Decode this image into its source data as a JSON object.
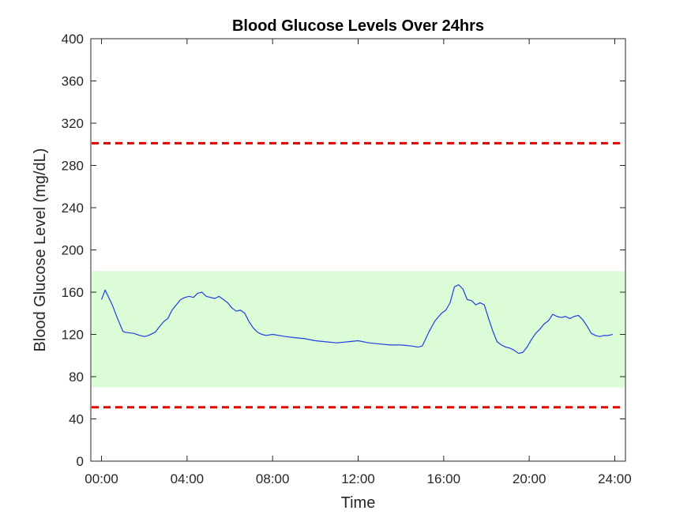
{
  "chart_data": {
    "type": "line",
    "title": "Blood Glucose Levels Over 24hrs",
    "xlabel": "Time",
    "ylabel": "Blood Glucose Level (mg/dL)",
    "xlim": [
      -0.5,
      24.5
    ],
    "ylim": [
      0,
      400
    ],
    "x_ticks": [
      0,
      4,
      8,
      12,
      16,
      20,
      24
    ],
    "x_tick_labels": [
      "00:00",
      "04:00",
      "08:00",
      "12:00",
      "16:00",
      "20:00",
      "24:00"
    ],
    "y_ticks": [
      0,
      40,
      80,
      120,
      160,
      200,
      240,
      280,
      320,
      360,
      400
    ],
    "grid": false,
    "target_range": {
      "low": 70,
      "high": 180,
      "color": "#dcfcd8"
    },
    "threshold_lines": [
      {
        "value": 301,
        "color": "#e00000",
        "style": "dashed"
      },
      {
        "value": 51,
        "color": "#e00000",
        "style": "dashed"
      }
    ],
    "series": [
      {
        "color": "#1f3fe0",
        "x": [
          0,
          0.17,
          0.5,
          0.75,
          1.0,
          1.1,
          1.5,
          1.8,
          2.0,
          2.2,
          2.5,
          2.7,
          2.9,
          3.1,
          3.3,
          3.5,
          3.7,
          3.9,
          4.1,
          4.3,
          4.5,
          4.7,
          4.9,
          5.1,
          5.3,
          5.5,
          5.7,
          5.9,
          6.1,
          6.3,
          6.5,
          6.7,
          6.9,
          7.1,
          7.3,
          7.5,
          7.7,
          8.0,
          8.3,
          8.6,
          9.0,
          9.5,
          10.0,
          10.5,
          11.0,
          11.5,
          12.0,
          12.5,
          13.0,
          13.5,
          14.0,
          14.5,
          14.8,
          15.0,
          15.3,
          15.6,
          15.9,
          16.1,
          16.3,
          16.5,
          16.7,
          16.9,
          17.1,
          17.3,
          17.5,
          17.7,
          17.9,
          18.1,
          18.3,
          18.5,
          18.7,
          18.9,
          19.1,
          19.3,
          19.5,
          19.7,
          19.9,
          20.1,
          20.3,
          20.5,
          20.7,
          20.9,
          21.1,
          21.3,
          21.5,
          21.7,
          21.9,
          22.1,
          22.3,
          22.5,
          22.7,
          22.9,
          23.1,
          23.3,
          23.5,
          23.7,
          23.9
        ],
        "values": [
          153,
          162,
          148,
          135,
          123,
          122,
          121,
          119,
          118,
          119,
          122,
          127,
          132,
          135,
          143,
          148,
          153,
          155,
          156,
          155,
          159,
          160,
          156,
          155,
          154,
          156,
          153,
          150,
          145,
          142,
          143,
          140,
          132,
          126,
          122,
          120,
          119,
          120,
          119,
          118,
          117,
          116,
          114,
          113,
          112,
          113,
          114,
          112,
          111,
          110,
          110,
          109,
          108,
          109,
          122,
          133,
          140,
          143,
          150,
          165,
          167,
          163,
          153,
          152,
          148,
          150,
          148,
          135,
          123,
          113,
          110,
          108,
          107,
          105,
          102,
          103,
          108,
          115,
          121,
          125,
          130,
          133,
          139,
          137,
          136,
          137,
          135,
          137,
          138,
          134,
          128,
          121,
          119,
          118,
          119,
          119,
          120
        ]
      }
    ]
  }
}
